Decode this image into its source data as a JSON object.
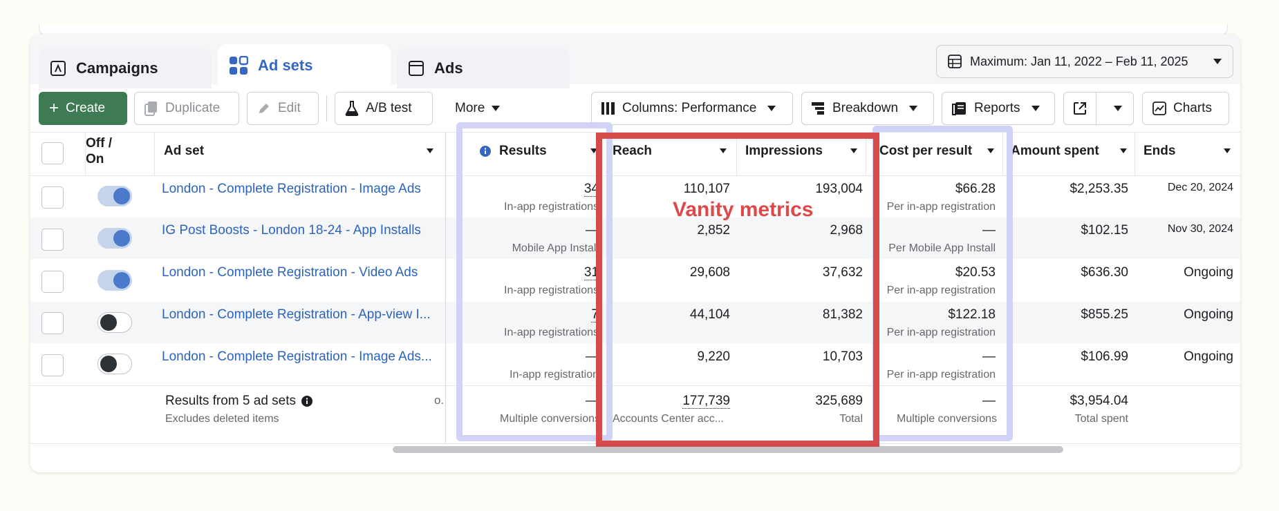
{
  "tabs": [
    {
      "label": "Campaigns",
      "icon": "flag-icon"
    },
    {
      "label": "Ad sets",
      "icon": "grid-icon"
    },
    {
      "label": "Ads",
      "icon": "window-icon"
    }
  ],
  "date_range": {
    "label": "Maximum: Jan 11, 2022 – Feb 11, 2025"
  },
  "toolbar": {
    "create": "Create",
    "duplicate": "Duplicate",
    "edit": "Edit",
    "ab_test": "A/B test",
    "more": "More",
    "columns": "Columns: Performance",
    "breakdown": "Breakdown",
    "reports": "Reports",
    "charts": "Charts"
  },
  "columns": {
    "toggle": "Off / On",
    "ad_set": "Ad set",
    "results": "Results",
    "reach": "Reach",
    "impressions": "Impressions",
    "cost_per_result": "Cost per result",
    "amount_spent": "Amount spent",
    "ends": "Ends"
  },
  "rows": [
    {
      "name": "London - Complete Registration - Image Ads",
      "on": true,
      "results": "34",
      "results_sub": "In-app registrations",
      "reach": "110,107",
      "impressions": "193,004",
      "cpr": "$66.28",
      "cpr_sub": "Per in-app registration",
      "spent": "$2,253.35",
      "ends": "Dec 20, 2024"
    },
    {
      "name": "IG Post Boosts - London 18-24 - App Installs",
      "on": true,
      "results": "—",
      "results_sub": "Mobile App Install",
      "reach": "2,852",
      "impressions": "2,968",
      "cpr": "—",
      "cpr_sub": "Per Mobile App Install",
      "spent": "$102.15",
      "ends": "Nov 30, 2024"
    },
    {
      "name": "London - Complete Registration - Video Ads",
      "on": true,
      "results": "31",
      "results_sub": "In-app registrations",
      "reach": "29,608",
      "impressions": "37,632",
      "cpr": "$20.53",
      "cpr_sub": "Per in-app registration",
      "spent": "$636.30",
      "ends": "Ongoing"
    },
    {
      "name": "London - Complete Registration - App-view I...",
      "on": false,
      "results": "7",
      "results_sub": "In-app registrations",
      "reach": "44,104",
      "impressions": "81,382",
      "cpr": "$122.18",
      "cpr_sub": "Per in-app registration",
      "spent": "$855.25",
      "ends": "Ongoing"
    },
    {
      "name": "London - Complete Registration - Image Ads...",
      "on": false,
      "results": "—",
      "results_sub": "In-app registration",
      "reach": "9,220",
      "impressions": "10,703",
      "cpr": "—",
      "cpr_sub": "Per in-app registration",
      "spent": "$106.99",
      "ends": "Ongoing"
    }
  ],
  "summary": {
    "title": "Results from 5 ad sets",
    "subtitle": "Excludes deleted items",
    "truncated": "o.",
    "results": "—",
    "results_sub": "Multiple conversions",
    "reach": "177,739",
    "reach_sub": "Accounts Center acc...",
    "impressions": "325,689",
    "impressions_sub": "Total",
    "cpr": "—",
    "cpr_sub": "Multiple conversions",
    "spent": "$3,954.04",
    "spent_sub": "Total spent"
  },
  "annotation": "Vanity metrics",
  "colors": {
    "accent": "#3466c2",
    "create": "#3e7a53",
    "highlight_red": "#d54b4b",
    "highlight_blue": "#d0d2f8"
  }
}
